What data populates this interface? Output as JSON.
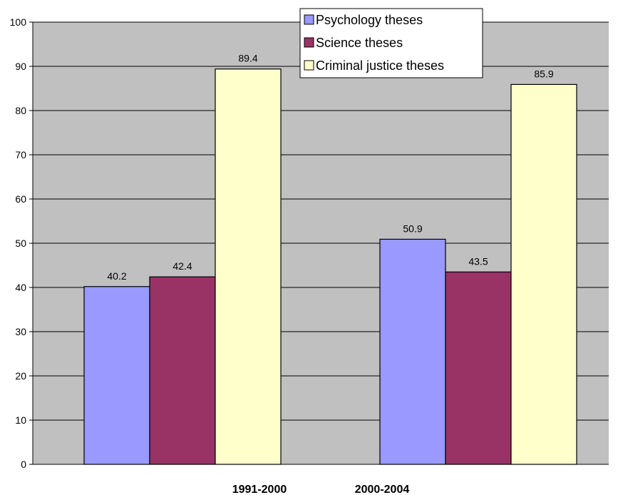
{
  "chart_data": {
    "type": "bar",
    "categories": [
      "1991-2000",
      "2000-2004"
    ],
    "series": [
      {
        "name": "Psychology theses",
        "values": [
          40.2,
          50.9
        ],
        "color": "#9999ff"
      },
      {
        "name": "Science theses",
        "values": [
          42.4,
          43.5
        ],
        "color": "#993366"
      },
      {
        "name": "Criminal justice theses",
        "values": [
          89.4,
          85.9
        ],
        "color": "#ffffcc"
      }
    ],
    "ylim": [
      0,
      100
    ],
    "yticks": [
      0,
      10,
      20,
      30,
      40,
      50,
      60,
      70,
      80,
      90,
      100
    ],
    "plot_background": "#c0c0c0",
    "grid": true,
    "legend_position": "top-right"
  }
}
